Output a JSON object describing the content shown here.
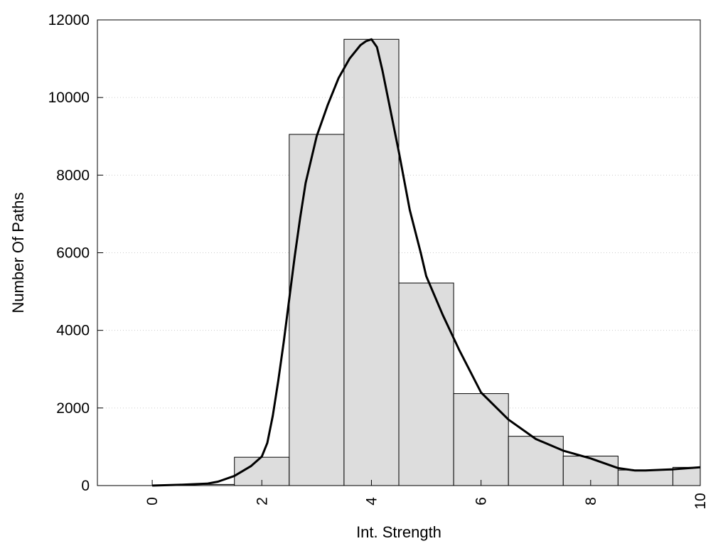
{
  "chart_data": {
    "type": "bar",
    "title": "",
    "xlabel": "Int. Strength",
    "ylabel": "Number Of Paths",
    "xlim": [
      -1,
      10
    ],
    "ylim": [
      0,
      12000
    ],
    "x_ticks": [
      "0",
      "2",
      "4",
      "6",
      "8",
      "10"
    ],
    "y_ticks": [
      "0",
      "2000",
      "4000",
      "6000",
      "8000",
      "10000",
      "12000"
    ],
    "grid": "horizontal dotted",
    "legend": "none",
    "colors": {
      "bar_fill": "#dddddd",
      "bar_edge": "#000000",
      "curve": "#000000",
      "grid": "#cccccc"
    },
    "histogram": {
      "bin_width": 1,
      "x": [
        0,
        1,
        2,
        3,
        4,
        5,
        6,
        7,
        8,
        9,
        10
      ],
      "values": [
        0,
        30,
        730,
        9050,
        11500,
        5220,
        2370,
        1270,
        760,
        400,
        470
      ]
    },
    "density_curve": {
      "x": [
        0,
        0.5,
        1.0,
        1.2,
        1.5,
        1.8,
        2.0,
        2.1,
        2.2,
        2.3,
        2.4,
        2.5,
        2.6,
        2.7,
        2.8,
        3.0,
        3.2,
        3.4,
        3.6,
        3.8,
        3.9,
        4.0,
        4.1,
        4.2,
        4.3,
        4.5,
        4.7,
        4.9,
        5.0,
        5.3,
        5.6,
        6.0,
        6.5,
        7.0,
        7.5,
        8.0,
        8.5,
        8.8,
        9.0,
        9.5,
        10.0
      ],
      "y": [
        0,
        20,
        50,
        100,
        250,
        500,
        750,
        1100,
        1800,
        2700,
        3700,
        4800,
        5900,
        6900,
        7800,
        9000,
        9800,
        10500,
        11000,
        11350,
        11450,
        11500,
        11300,
        10700,
        10000,
        8600,
        7100,
        6000,
        5400,
        4400,
        3500,
        2400,
        1700,
        1200,
        900,
        700,
        450,
        390,
        390,
        420,
        470
      ]
    }
  }
}
